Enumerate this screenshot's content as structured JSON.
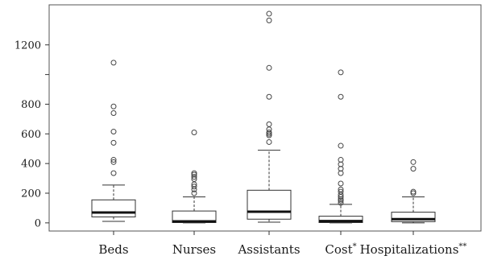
{
  "chart_data": {
    "type": "boxplot",
    "title": "",
    "xlabel": "",
    "ylabel": "",
    "ylim": [
      -55,
      1470
    ],
    "yticks": [
      0,
      200,
      400,
      600,
      800,
      1200
    ],
    "grid": false,
    "categories": [
      {
        "label": "Beds",
        "sup": ""
      },
      {
        "label": "Nurses",
        "sup": ""
      },
      {
        "label": "Assistants",
        "sup": ""
      },
      {
        "label": "Cost",
        "sup": "*"
      },
      {
        "label": "Hospitalizations",
        "sup": "**"
      }
    ],
    "boxes": [
      {
        "min": 10,
        "q1": 40,
        "median": 70,
        "q3": 155,
        "max": 255,
        "outliers": [
          335,
          410,
          425,
          540,
          615,
          740,
          785,
          1080
        ]
      },
      {
        "min": 0,
        "q1": 2,
        "median": 10,
        "q3": 80,
        "max": 175,
        "outliers": [
          200,
          225,
          245,
          260,
          295,
          310,
          325,
          335,
          610
        ]
      },
      {
        "min": 5,
        "q1": 25,
        "median": 75,
        "q3": 220,
        "max": 490,
        "outliers": [
          545,
          590,
          600,
          610,
          630,
          665,
          850,
          1045,
          1365,
          1410
        ]
      },
      {
        "min": 0,
        "q1": 2,
        "median": 12,
        "q3": 45,
        "max": 125,
        "outliers": [
          135,
          150,
          160,
          175,
          190,
          210,
          225,
          265,
          335,
          365,
          395,
          425,
          520,
          850,
          1015
        ]
      },
      {
        "min": 0,
        "q1": 8,
        "median": 25,
        "q3": 72,
        "max": 175,
        "outliers": [
          200,
          210,
          365,
          410
        ]
      }
    ]
  }
}
